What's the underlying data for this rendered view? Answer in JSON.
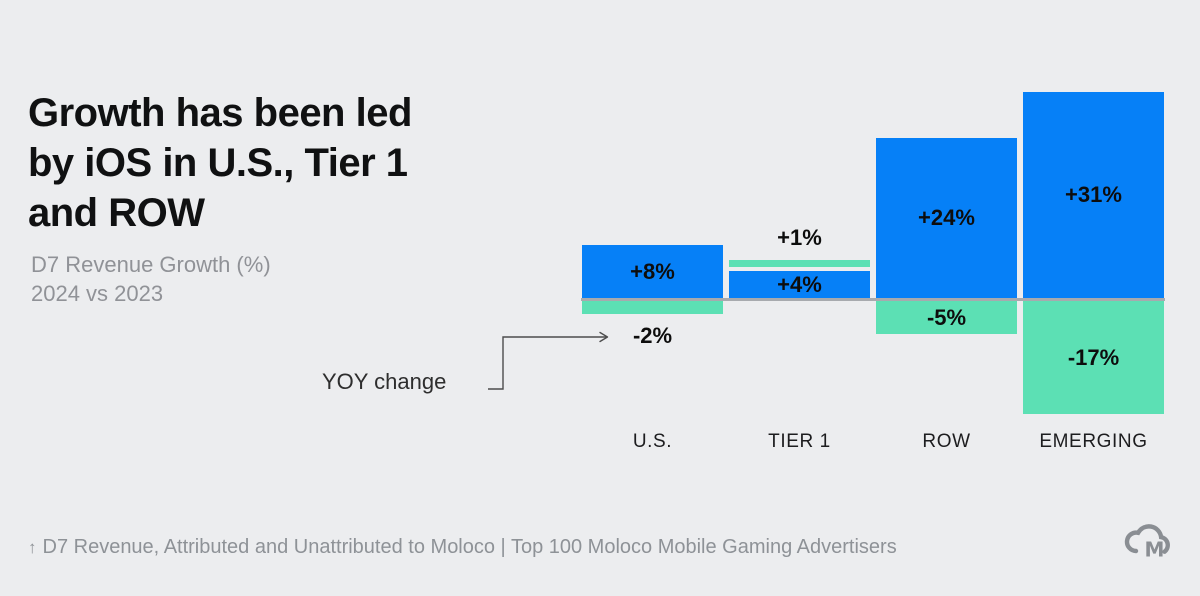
{
  "page": {
    "background": "#ECEDEF"
  },
  "header": {
    "title": "Growth has been led\nby iOS in U.S., Tier 1\nand ROW",
    "subtitle": "D7 Revenue Growth (%)\n2024 vs 2023"
  },
  "annotation": {
    "label": "YOY change"
  },
  "chart_data": {
    "type": "bar",
    "title": "Growth has been led by iOS in U.S., Tier 1 and ROW",
    "subtitle": "D7 Revenue Growth (%) 2024 vs 2023",
    "categories": [
      "U.S.",
      "TIER 1",
      "ROW",
      "EMERGING"
    ],
    "series": [
      {
        "name": "blue-series",
        "color": "#0680F7",
        "values": [
          8,
          4,
          24,
          31
        ],
        "labels": [
          "+8%",
          "+4%",
          "+24%",
          "+31%"
        ]
      },
      {
        "name": "green-series",
        "color": "#5CE0B4",
        "values": [
          -2,
          1,
          -5,
          -17
        ],
        "labels": [
          "-2%",
          "+1%",
          "-5%",
          "-17%"
        ]
      }
    ],
    "annotation_target": "-2%",
    "axis_color": "#A7AAAE",
    "baseline": 0,
    "legend": "none",
    "grid": false,
    "value_label_color": "#0d0d0d"
  },
  "footer": {
    "arrow": "↑",
    "text": "D7 Revenue, Attributed and Unattributed to Moloco | Top 100 Moloco Mobile Gaming Advertisers",
    "logo": "moloco-cloud-logo"
  }
}
